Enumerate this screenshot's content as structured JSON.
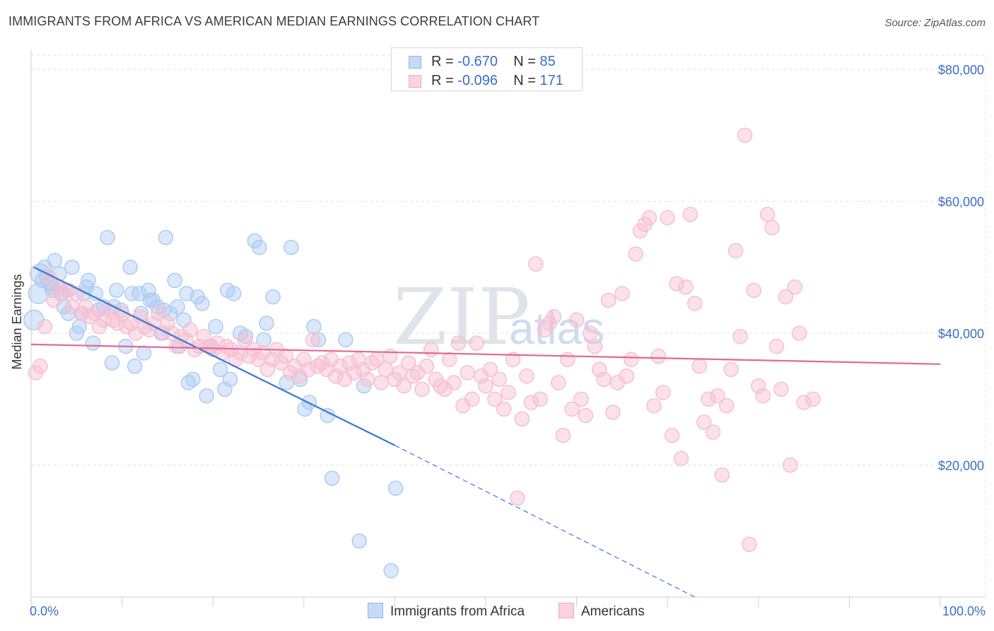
{
  "header": {
    "title": "IMMIGRANTS FROM AFRICA VS AMERICAN MEDIAN EARNINGS CORRELATION CHART",
    "source": "Source: ZipAtlas.com"
  },
  "legend": {
    "series": [
      {
        "r_label": "R =",
        "r_value": "-0.670",
        "n_label": "N =",
        "n_value": "85",
        "color": "#8fb6ea"
      },
      {
        "r_label": "R =",
        "r_value": "-0.096",
        "n_label": "N =",
        "n_value": "171",
        "color": "#f4a7c0"
      }
    ]
  },
  "watermark": {
    "zip": "ZIP",
    "atlas": "atlas"
  },
  "chart_data": {
    "type": "scatter",
    "xlabel": "",
    "ylabel": "Median Earnings",
    "xlim": [
      0,
      100
    ],
    "ylim": [
      0,
      83000
    ],
    "x_tick_labels": [
      "0.0%",
      "100.0%"
    ],
    "y_ticks": [
      20000,
      40000,
      60000,
      80000
    ],
    "y_tick_labels": [
      "$20,000",
      "$40,000",
      "$60,000",
      "$80,000"
    ],
    "grid": true,
    "legend_position": "bottom",
    "series": [
      {
        "name": "Immigrants from Africa",
        "color": "#3a78d8",
        "fill": "#aecbf2",
        "trend": {
          "x0": 0.3,
          "y0": 50000,
          "x1": 40,
          "y1": 23000,
          "x_dash_end": 73,
          "y_dash_end": 0
        },
        "points": [
          [
            0.3,
            42000
          ],
          [
            0.8,
            46000
          ],
          [
            1,
            49000
          ],
          [
            1.5,
            50000
          ],
          [
            1.7,
            48500
          ],
          [
            2,
            47500
          ],
          [
            2.3,
            46500
          ],
          [
            2.6,
            51000
          ],
          [
            2.9,
            47000
          ],
          [
            3.3,
            46000
          ],
          [
            3.6,
            44000
          ],
          [
            4.1,
            43000
          ],
          [
            4.5,
            50000
          ],
          [
            5,
            40000
          ],
          [
            5.3,
            41000
          ],
          [
            5.8,
            46000
          ],
          [
            6.3,
            48000
          ],
          [
            6.8,
            38500
          ],
          [
            7.4,
            43500
          ],
          [
            8,
            44000
          ],
          [
            8.4,
            54500
          ],
          [
            8.9,
            35500
          ],
          [
            9.4,
            46500
          ],
          [
            9.9,
            43500
          ],
          [
            10.4,
            38000
          ],
          [
            10.9,
            50000
          ],
          [
            11.4,
            35000
          ],
          [
            11.9,
            46000
          ],
          [
            12.4,
            37000
          ],
          [
            12.9,
            46500
          ],
          [
            13.4,
            45000
          ],
          [
            13.9,
            44000
          ],
          [
            14.3,
            40000
          ],
          [
            14.8,
            54500
          ],
          [
            15.3,
            43000
          ],
          [
            15.8,
            48000
          ],
          [
            16.3,
            38000
          ],
          [
            16.8,
            42000
          ],
          [
            17.3,
            32500
          ],
          [
            17.8,
            33000
          ],
          [
            18.3,
            45500
          ],
          [
            18.8,
            44500
          ],
          [
            19.3,
            30500
          ],
          [
            19.8,
            38000
          ],
          [
            20.3,
            41000
          ],
          [
            20.8,
            34500
          ],
          [
            21.3,
            31500
          ],
          [
            21.6,
            46500
          ],
          [
            21.9,
            33000
          ],
          [
            22.3,
            46000
          ],
          [
            23,
            40000
          ],
          [
            23.6,
            39500
          ],
          [
            24.6,
            54000
          ],
          [
            25.1,
            53000
          ],
          [
            25.6,
            39000
          ],
          [
            25.9,
            41500
          ],
          [
            26.6,
            45500
          ],
          [
            28.1,
            32500
          ],
          [
            28.6,
            53000
          ],
          [
            29.6,
            33000
          ],
          [
            30.1,
            28500
          ],
          [
            30.6,
            29500
          ],
          [
            31.1,
            41000
          ],
          [
            31.6,
            39000
          ],
          [
            32.6,
            27500
          ],
          [
            33.1,
            18000
          ],
          [
            34.6,
            39000
          ],
          [
            36.1,
            8500
          ],
          [
            36.6,
            32000
          ],
          [
            40.1,
            16500
          ],
          [
            39.6,
            4000
          ],
          [
            2.4,
            47000
          ],
          [
            3.1,
            49000
          ],
          [
            5.6,
            43000
          ],
          [
            7.1,
            46000
          ],
          [
            9.1,
            44000
          ],
          [
            11.1,
            46000
          ],
          [
            12.1,
            43000
          ],
          [
            14.6,
            43500
          ],
          [
            16.1,
            44000
          ],
          [
            4.1,
            46500
          ],
          [
            6.1,
            47000
          ],
          [
            1.2,
            48000
          ],
          [
            13.1,
            45000
          ],
          [
            17.1,
            46000
          ]
        ]
      },
      {
        "name": "Americans",
        "color": "#e46892",
        "fill": "#f6bfd1",
        "trend": {
          "x0": 0,
          "y0": 38300,
          "x1": 100,
          "y1": 35300
        },
        "points": [
          [
            0.5,
            34000
          ],
          [
            1,
            35000
          ],
          [
            1.5,
            41000
          ],
          [
            2,
            48500
          ],
          [
            2.5,
            45000
          ],
          [
            3,
            47000
          ],
          [
            3.5,
            46000
          ],
          [
            4,
            46500
          ],
          [
            4.5,
            44000
          ],
          [
            5,
            46000
          ],
          [
            5.5,
            43000
          ],
          [
            6,
            44000
          ],
          [
            6.5,
            42500
          ],
          [
            7,
            43000
          ],
          [
            7.5,
            41000
          ],
          [
            8,
            42000
          ],
          [
            8.5,
            43500
          ],
          [
            9,
            42000
          ],
          [
            9.5,
            41500
          ],
          [
            10,
            43000
          ],
          [
            10.5,
            41000
          ],
          [
            11,
            41500
          ],
          [
            11.5,
            40000
          ],
          [
            12,
            42500
          ],
          [
            12.5,
            41000
          ],
          [
            13,
            40500
          ],
          [
            13.5,
            41500
          ],
          [
            14,
            43000
          ],
          [
            14.5,
            40000
          ],
          [
            15,
            41500
          ],
          [
            15.5,
            40000
          ],
          [
            16,
            38000
          ],
          [
            16.5,
            39500
          ],
          [
            17,
            39000
          ],
          [
            17.5,
            40500
          ],
          [
            18,
            37500
          ],
          [
            18.5,
            38000
          ],
          [
            19,
            39500
          ],
          [
            19.5,
            38000
          ],
          [
            20,
            37500
          ],
          [
            20.5,
            38500
          ],
          [
            21,
            37000
          ],
          [
            21.5,
            38000
          ],
          [
            22,
            37500
          ],
          [
            22.5,
            36000
          ],
          [
            23,
            37000
          ],
          [
            23.5,
            39000
          ],
          [
            24,
            36500
          ],
          [
            24.5,
            37500
          ],
          [
            25,
            36000
          ],
          [
            25.5,
            37000
          ],
          [
            26,
            34500
          ],
          [
            26.5,
            36000
          ],
          [
            27,
            37500
          ],
          [
            27.5,
            35500
          ],
          [
            28,
            36500
          ],
          [
            28.5,
            34000
          ],
          [
            29,
            35000
          ],
          [
            29.5,
            33500
          ],
          [
            30,
            36000
          ],
          [
            30.5,
            34500
          ],
          [
            31,
            39000
          ],
          [
            31.5,
            35000
          ],
          [
            32,
            35500
          ],
          [
            32.5,
            34500
          ],
          [
            33,
            36000
          ],
          [
            33.5,
            33500
          ],
          [
            34,
            35000
          ],
          [
            34.5,
            33000
          ],
          [
            35,
            35500
          ],
          [
            35.5,
            34000
          ],
          [
            36,
            36000
          ],
          [
            36.5,
            34500
          ],
          [
            37,
            33000
          ],
          [
            37.5,
            35500
          ],
          [
            38,
            36000
          ],
          [
            38.5,
            32500
          ],
          [
            39,
            34500
          ],
          [
            39.5,
            36500
          ],
          [
            40,
            33000
          ],
          [
            40.5,
            34000
          ],
          [
            41,
            32000
          ],
          [
            41.5,
            35500
          ],
          [
            42,
            33500
          ],
          [
            42.5,
            34000
          ],
          [
            43,
            31500
          ],
          [
            43.5,
            35000
          ],
          [
            44,
            37500
          ],
          [
            44.5,
            33000
          ],
          [
            45,
            32000
          ],
          [
            45.5,
            31500
          ],
          [
            46,
            36000
          ],
          [
            46.5,
            32500
          ],
          [
            47,
            38500
          ],
          [
            47.5,
            29000
          ],
          [
            48,
            34000
          ],
          [
            48.5,
            30000
          ],
          [
            49,
            38500
          ],
          [
            49.5,
            33500
          ],
          [
            50,
            32000
          ],
          [
            50.5,
            34500
          ],
          [
            51,
            30000
          ],
          [
            51.5,
            33000
          ],
          [
            52,
            28500
          ],
          [
            52.5,
            31000
          ],
          [
            53,
            36000
          ],
          [
            53.5,
            15000
          ],
          [
            54,
            27000
          ],
          [
            54.5,
            33500
          ],
          [
            55,
            29500
          ],
          [
            55.5,
            50500
          ],
          [
            56,
            30000
          ],
          [
            56.5,
            40500
          ],
          [
            57,
            41500
          ],
          [
            57.5,
            42500
          ],
          [
            58,
            32500
          ],
          [
            58.5,
            24500
          ],
          [
            59,
            36000
          ],
          [
            59.5,
            28500
          ],
          [
            60,
            42000
          ],
          [
            60.5,
            30000
          ],
          [
            61,
            27500
          ],
          [
            61.5,
            40000
          ],
          [
            62,
            38000
          ],
          [
            62.5,
            34500
          ],
          [
            63,
            33000
          ],
          [
            63.5,
            45000
          ],
          [
            64,
            28000
          ],
          [
            64.5,
            32500
          ],
          [
            65,
            46000
          ],
          [
            65.5,
            33500
          ],
          [
            66,
            36000
          ],
          [
            66.5,
            52000
          ],
          [
            67,
            55500
          ],
          [
            67.5,
            56500
          ],
          [
            68,
            57500
          ],
          [
            68.5,
            29000
          ],
          [
            69,
            36500
          ],
          [
            69.5,
            31000
          ],
          [
            70,
            57500
          ],
          [
            70.5,
            24500
          ],
          [
            71,
            47500
          ],
          [
            71.5,
            21000
          ],
          [
            72,
            47000
          ],
          [
            72.5,
            58000
          ],
          [
            73,
            44500
          ],
          [
            73.5,
            35000
          ],
          [
            74,
            26500
          ],
          [
            74.5,
            30000
          ],
          [
            75,
            25000
          ],
          [
            75.5,
            30500
          ],
          [
            76,
            18500
          ],
          [
            76.5,
            29000
          ],
          [
            77,
            34500
          ],
          [
            77.5,
            52500
          ],
          [
            78,
            39500
          ],
          [
            78.5,
            70000
          ],
          [
            79,
            8000
          ],
          [
            79.5,
            46500
          ],
          [
            80,
            32000
          ],
          [
            80.5,
            30500
          ],
          [
            81,
            58000
          ],
          [
            81.5,
            56000
          ],
          [
            82,
            38000
          ],
          [
            82.5,
            31500
          ],
          [
            83,
            45500
          ],
          [
            83.5,
            20000
          ],
          [
            84,
            47000
          ],
          [
            84.5,
            40000
          ],
          [
            85,
            29500
          ],
          [
            86,
            30000
          ]
        ]
      }
    ]
  },
  "bottom_legend": {
    "items": [
      {
        "label": "Immigrants from Africa"
      },
      {
        "label": "Americans"
      }
    ]
  }
}
